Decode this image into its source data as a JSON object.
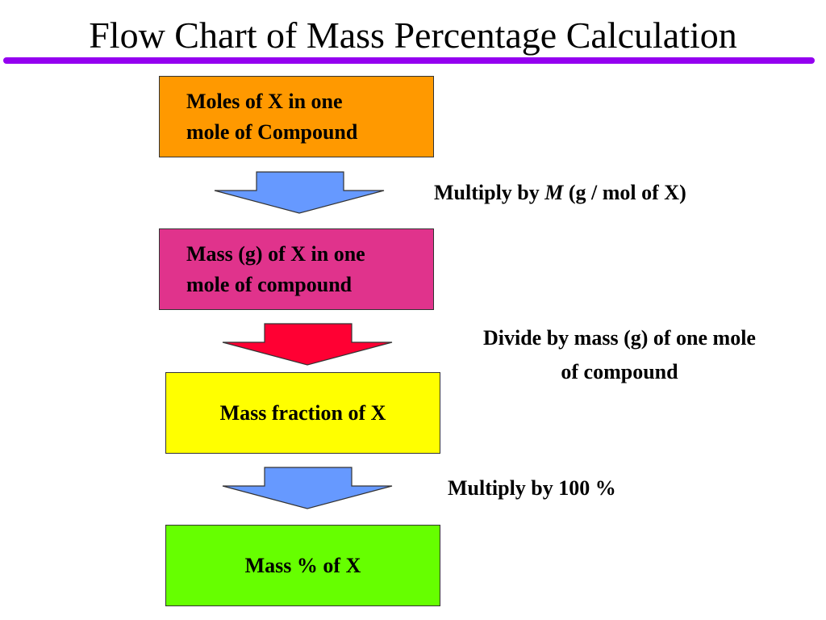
{
  "title": "Flow Chart of Mass Percentage Calculation",
  "colors": {
    "rule": "#9400f0",
    "box1": "#ff9900",
    "box2": "#e0338c",
    "box3": "#ffff00",
    "box4": "#66ff00",
    "arrow_blue": "#6699ff",
    "arrow_red": "#ff0033"
  },
  "steps": [
    {
      "text": "Moles of X in one\nmole of Compound"
    },
    {
      "text": "Mass (g) of X in one\nmole of compound"
    },
    {
      "text": "Mass fraction of X"
    },
    {
      "text": "Mass % of X"
    }
  ],
  "operations": [
    {
      "prefix": "Multiply by ",
      "symbol": "M",
      "suffix": " (g / mol of X)"
    },
    {
      "text": "Divide by mass (g) of one mole\nof compound"
    },
    {
      "text": "Multiply by 100 %"
    }
  ]
}
